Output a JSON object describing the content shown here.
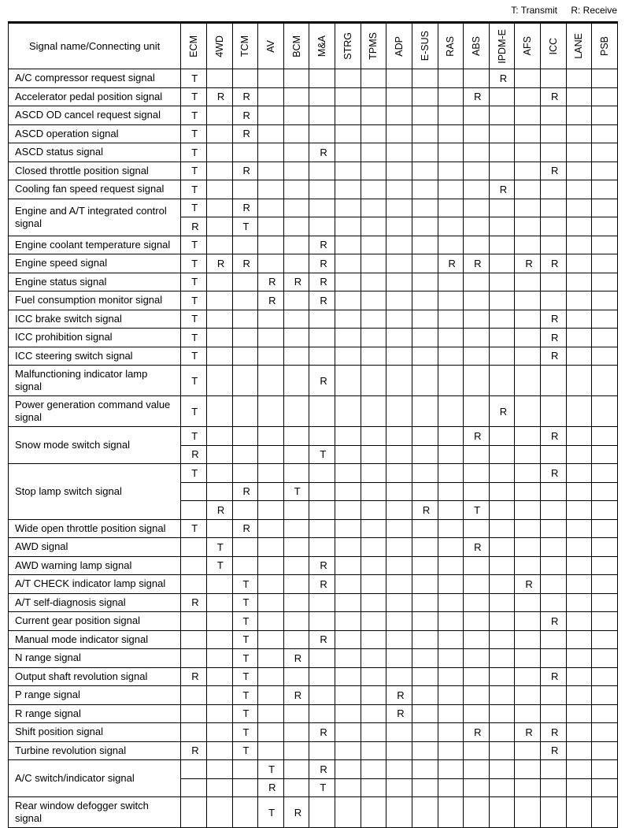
{
  "legend": {
    "transmit": "T: Transmit",
    "receive": "R: Receive"
  },
  "header": {
    "name_label": "Signal name/Connecting unit"
  },
  "columns": [
    "ECM",
    "4WD",
    "TCM",
    "AV",
    "BCM",
    "M&A",
    "STRG",
    "TPMS",
    "ADP",
    "E-SUS",
    "RAS",
    "ABS",
    "IPDM-E",
    "AFS",
    "ICC",
    "LANE",
    "PSB"
  ],
  "rows": [
    {
      "name": "A/C compressor request signal",
      "sub": [
        {
          "ECM": "T",
          "IPDM-E": "R"
        }
      ]
    },
    {
      "name": "Accelerator pedal position signal",
      "sub": [
        {
          "ECM": "T",
          "4WD": "R",
          "TCM": "R",
          "ABS": "R",
          "ICC": "R"
        }
      ]
    },
    {
      "name": "ASCD OD cancel request signal",
      "sub": [
        {
          "ECM": "T",
          "TCM": "R"
        }
      ]
    },
    {
      "name": "ASCD operation signal",
      "sub": [
        {
          "ECM": "T",
          "TCM": "R"
        }
      ]
    },
    {
      "name": "ASCD status signal",
      "sub": [
        {
          "ECM": "T",
          "M&A": "R"
        }
      ]
    },
    {
      "name": "Closed throttle position signal",
      "sub": [
        {
          "ECM": "T",
          "TCM": "R",
          "ICC": "R"
        }
      ]
    },
    {
      "name": "Cooling fan speed request signal",
      "sub": [
        {
          "ECM": "T",
          "IPDM-E": "R"
        }
      ]
    },
    {
      "name": "Engine and A/T integrated control signal",
      "sub": [
        {
          "ECM": "T",
          "TCM": "R"
        },
        {
          "ECM": "R",
          "TCM": "T"
        }
      ]
    },
    {
      "name": "Engine coolant temperature signal",
      "sub": [
        {
          "ECM": "T",
          "M&A": "R"
        }
      ]
    },
    {
      "name": "Engine speed signal",
      "sub": [
        {
          "ECM": "T",
          "4WD": "R",
          "TCM": "R",
          "M&A": "R",
          "RAS": "R",
          "ABS": "R",
          "AFS": "R",
          "ICC": "R"
        }
      ]
    },
    {
      "name": "Engine status signal",
      "sub": [
        {
          "ECM": "T",
          "AV": "R",
          "BCM": "R",
          "M&A": "R"
        }
      ]
    },
    {
      "name": "Fuel consumption monitor signal",
      "sub": [
        {
          "ECM": "T",
          "AV": "R",
          "M&A": "R"
        }
      ]
    },
    {
      "name": "ICC brake switch signal",
      "sub": [
        {
          "ECM": "T",
          "ICC": "R"
        }
      ]
    },
    {
      "name": "ICC prohibition signal",
      "sub": [
        {
          "ECM": "T",
          "ICC": "R"
        }
      ]
    },
    {
      "name": "ICC steering switch signal",
      "sub": [
        {
          "ECM": "T",
          "ICC": "R"
        }
      ]
    },
    {
      "name": "Malfunctioning indicator lamp signal",
      "sub": [
        {
          "ECM": "T",
          "M&A": "R"
        }
      ]
    },
    {
      "name": "Power generation command value signal",
      "sub": [
        {
          "ECM": "T",
          "IPDM-E": "R"
        }
      ]
    },
    {
      "name": "Snow mode switch signal",
      "sub": [
        {
          "ECM": "T",
          "ABS": "R",
          "ICC": "R"
        },
        {
          "ECM": "R",
          "M&A": "T"
        }
      ]
    },
    {
      "name": "Stop lamp switch signal",
      "sub": [
        {
          "ECM": "T",
          "ICC": "R"
        },
        {
          "TCM": "R",
          "BCM": "T"
        },
        {
          "4WD": "R",
          "E-SUS": "R",
          "ABS": "T"
        }
      ]
    },
    {
      "name": "Wide open throttle position signal",
      "sub": [
        {
          "ECM": "T",
          "TCM": "R"
        }
      ]
    },
    {
      "name": "AWD signal",
      "sub": [
        {
          "4WD": "T",
          "ABS": "R"
        }
      ]
    },
    {
      "name": "AWD warning lamp signal",
      "sub": [
        {
          "4WD": "T",
          "M&A": "R"
        }
      ]
    },
    {
      "name": "A/T CHECK indicator lamp signal",
      "sub": [
        {
          "TCM": "T",
          "M&A": "R",
          "AFS": "R"
        }
      ]
    },
    {
      "name": "A/T self-diagnosis signal",
      "sub": [
        {
          "ECM": "R",
          "TCM": "T"
        }
      ]
    },
    {
      "name": "Current gear position signal",
      "sub": [
        {
          "TCM": "T",
          "ICC": "R"
        }
      ]
    },
    {
      "name": "Manual mode indicator signal",
      "sub": [
        {
          "TCM": "T",
          "M&A": "R"
        }
      ]
    },
    {
      "name": "N range signal",
      "sub": [
        {
          "TCM": "T",
          "BCM": "R"
        }
      ]
    },
    {
      "name": "Output shaft revolution signal",
      "sub": [
        {
          "ECM": "R",
          "TCM": "T",
          "ICC": "R"
        }
      ]
    },
    {
      "name": "P range signal",
      "sub": [
        {
          "TCM": "T",
          "BCM": "R",
          "ADP": "R"
        }
      ]
    },
    {
      "name": "R range signal",
      "sub": [
        {
          "TCM": "T",
          "ADP": "R"
        }
      ]
    },
    {
      "name": "Shift position signal",
      "sub": [
        {
          "TCM": "T",
          "M&A": "R",
          "ABS": "R",
          "AFS": "R",
          "ICC": "R"
        }
      ]
    },
    {
      "name": "Turbine revolution signal",
      "sub": [
        {
          "ECM": "R",
          "TCM": "T",
          "ICC": "R"
        }
      ]
    },
    {
      "name": "A/C switch/indicator signal",
      "sub": [
        {
          "AV": "T",
          "M&A": "R"
        },
        {
          "AV": "R",
          "M&A": "T"
        }
      ]
    },
    {
      "name": "Rear window defogger switch signal",
      "sub": [
        {
          "AV": "T",
          "BCM": "R"
        }
      ]
    }
  ]
}
